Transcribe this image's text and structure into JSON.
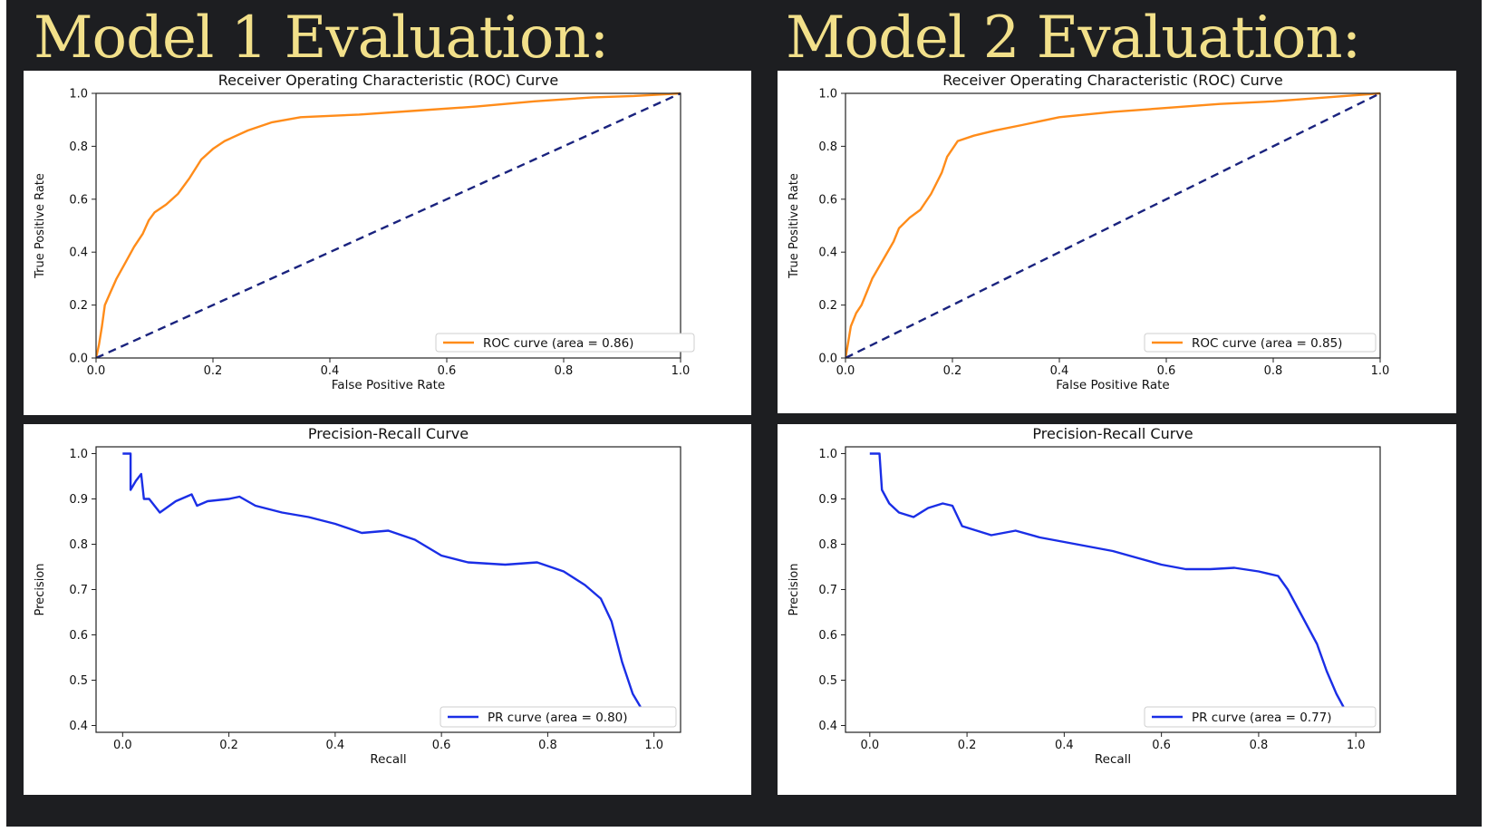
{
  "headings": [
    "Model 1 Evaluation:",
    "Model 2 Evaluation:"
  ],
  "colors": {
    "background": "#1d1e21",
    "heading": "#f2e08a",
    "roc": "#ff8c1a",
    "chance": "#1a237e",
    "pr": "#1a2ee6"
  },
  "chart_data": [
    {
      "type": "line",
      "title": "Receiver Operating Characteristic (ROC) Curve",
      "xlabel": "False Positive Rate",
      "ylabel": "True Positive Rate",
      "xlim": [
        0,
        1
      ],
      "ylim": [
        0,
        1
      ],
      "xticks": [
        "0.0",
        "0.2",
        "0.4",
        "0.6",
        "0.8",
        "1.0"
      ],
      "yticks": [
        "0.0",
        "0.2",
        "0.4",
        "0.6",
        "0.8",
        "1.0"
      ],
      "grid": false,
      "legend_position": "lower-right",
      "series": [
        {
          "name": "ROC curve (area = 0.86)",
          "color": "#ff8c1a",
          "style": "solid",
          "points": [
            [
              0,
              0
            ],
            [
              0.005,
              0.05
            ],
            [
              0.01,
              0.12
            ],
            [
              0.015,
              0.2
            ],
            [
              0.025,
              0.25
            ],
            [
              0.035,
              0.3
            ],
            [
              0.05,
              0.36
            ],
            [
              0.065,
              0.42
            ],
            [
              0.08,
              0.47
            ],
            [
              0.09,
              0.52
            ],
            [
              0.1,
              0.55
            ],
            [
              0.12,
              0.58
            ],
            [
              0.14,
              0.62
            ],
            [
              0.16,
              0.68
            ],
            [
              0.18,
              0.75
            ],
            [
              0.2,
              0.79
            ],
            [
              0.22,
              0.82
            ],
            [
              0.26,
              0.86
            ],
            [
              0.3,
              0.89
            ],
            [
              0.35,
              0.91
            ],
            [
              0.45,
              0.92
            ],
            [
              0.55,
              0.935
            ],
            [
              0.65,
              0.95
            ],
            [
              0.75,
              0.97
            ],
            [
              0.85,
              0.985
            ],
            [
              0.92,
              0.99
            ],
            [
              1,
              1
            ]
          ]
        },
        {
          "name": "",
          "color": "#1a237e",
          "style": "dashed",
          "points": [
            [
              0,
              0
            ],
            [
              1,
              1
            ]
          ]
        }
      ]
    },
    {
      "type": "line",
      "title": "Receiver Operating Characteristic (ROC) Curve",
      "xlabel": "False Positive Rate",
      "ylabel": "True Positive Rate",
      "xlim": [
        0,
        1
      ],
      "ylim": [
        0,
        1
      ],
      "xticks": [
        "0.0",
        "0.2",
        "0.4",
        "0.6",
        "0.8",
        "1.0"
      ],
      "yticks": [
        "0.0",
        "0.2",
        "0.4",
        "0.6",
        "0.8",
        "1.0"
      ],
      "grid": false,
      "legend_position": "lower-right",
      "series": [
        {
          "name": "ROC curve (area = 0.85)",
          "color": "#ff8c1a",
          "style": "solid",
          "points": [
            [
              0,
              0
            ],
            [
              0.005,
              0.06
            ],
            [
              0.01,
              0.12
            ],
            [
              0.02,
              0.17
            ],
            [
              0.03,
              0.2
            ],
            [
              0.04,
              0.25
            ],
            [
              0.05,
              0.3
            ],
            [
              0.07,
              0.37
            ],
            [
              0.09,
              0.44
            ],
            [
              0.1,
              0.49
            ],
            [
              0.12,
              0.53
            ],
            [
              0.14,
              0.56
            ],
            [
              0.16,
              0.62
            ],
            [
              0.18,
              0.7
            ],
            [
              0.19,
              0.76
            ],
            [
              0.21,
              0.82
            ],
            [
              0.24,
              0.84
            ],
            [
              0.28,
              0.86
            ],
            [
              0.33,
              0.88
            ],
            [
              0.4,
              0.91
            ],
            [
              0.5,
              0.93
            ],
            [
              0.6,
              0.945
            ],
            [
              0.7,
              0.96
            ],
            [
              0.8,
              0.97
            ],
            [
              0.9,
              0.985
            ],
            [
              1,
              1
            ]
          ]
        },
        {
          "name": "",
          "color": "#1a237e",
          "style": "dashed",
          "points": [
            [
              0,
              0
            ],
            [
              1,
              1
            ]
          ]
        }
      ]
    },
    {
      "type": "line",
      "title": "Precision-Recall Curve",
      "xlabel": "Recall",
      "ylabel": "Precision",
      "xlim": [
        -0.05,
        1.05
      ],
      "ylim": [
        0.385,
        1.015
      ],
      "xticks": [
        "0.0",
        "0.2",
        "0.4",
        "0.6",
        "0.8",
        "1.0"
      ],
      "yticks": [
        "0.4",
        "0.5",
        "0.6",
        "0.7",
        "0.8",
        "0.9",
        "1.0"
      ],
      "grid": false,
      "legend_position": "lower-right",
      "series": [
        {
          "name": "PR curve (area = 0.80)",
          "color": "#1a2ee6",
          "style": "solid",
          "points": [
            [
              0,
              1
            ],
            [
              0.015,
              1
            ],
            [
              0.015,
              0.92
            ],
            [
              0.025,
              0.94
            ],
            [
              0.035,
              0.955
            ],
            [
              0.04,
              0.9
            ],
            [
              0.05,
              0.9
            ],
            [
              0.07,
              0.87
            ],
            [
              0.1,
              0.895
            ],
            [
              0.13,
              0.91
            ],
            [
              0.14,
              0.885
            ],
            [
              0.16,
              0.895
            ],
            [
              0.2,
              0.9
            ],
            [
              0.22,
              0.905
            ],
            [
              0.25,
              0.885
            ],
            [
              0.3,
              0.87
            ],
            [
              0.35,
              0.86
            ],
            [
              0.4,
              0.845
            ],
            [
              0.45,
              0.825
            ],
            [
              0.5,
              0.83
            ],
            [
              0.55,
              0.81
            ],
            [
              0.6,
              0.775
            ],
            [
              0.65,
              0.76
            ],
            [
              0.72,
              0.755
            ],
            [
              0.78,
              0.76
            ],
            [
              0.83,
              0.74
            ],
            [
              0.87,
              0.71
            ],
            [
              0.9,
              0.68
            ],
            [
              0.92,
              0.63
            ],
            [
              0.94,
              0.54
            ],
            [
              0.96,
              0.47
            ],
            [
              0.98,
              0.43
            ]
          ]
        }
      ]
    },
    {
      "type": "line",
      "title": "Precision-Recall Curve",
      "xlabel": "Recall",
      "ylabel": "Precision",
      "xlim": [
        -0.05,
        1.05
      ],
      "ylim": [
        0.385,
        1.015
      ],
      "xticks": [
        "0.0",
        "0.2",
        "0.4",
        "0.6",
        "0.8",
        "1.0"
      ],
      "yticks": [
        "0.4",
        "0.5",
        "0.6",
        "0.7",
        "0.8",
        "0.9",
        "1.0"
      ],
      "grid": false,
      "legend_position": "lower-right",
      "series": [
        {
          "name": "PR curve (area = 0.77)",
          "color": "#1a2ee6",
          "style": "solid",
          "points": [
            [
              0,
              1
            ],
            [
              0.02,
              1
            ],
            [
              0.025,
              0.92
            ],
            [
              0.04,
              0.89
            ],
            [
              0.06,
              0.87
            ],
            [
              0.09,
              0.86
            ],
            [
              0.12,
              0.88
            ],
            [
              0.15,
              0.89
            ],
            [
              0.17,
              0.885
            ],
            [
              0.19,
              0.84
            ],
            [
              0.22,
              0.83
            ],
            [
              0.25,
              0.82
            ],
            [
              0.3,
              0.83
            ],
            [
              0.35,
              0.815
            ],
            [
              0.4,
              0.805
            ],
            [
              0.45,
              0.795
            ],
            [
              0.5,
              0.785
            ],
            [
              0.55,
              0.77
            ],
            [
              0.6,
              0.755
            ],
            [
              0.65,
              0.745
            ],
            [
              0.7,
              0.745
            ],
            [
              0.75,
              0.748
            ],
            [
              0.8,
              0.74
            ],
            [
              0.84,
              0.73
            ],
            [
              0.86,
              0.7
            ],
            [
              0.89,
              0.64
            ],
            [
              0.92,
              0.58
            ],
            [
              0.94,
              0.52
            ],
            [
              0.96,
              0.47
            ],
            [
              0.98,
              0.43
            ]
          ]
        }
      ]
    }
  ]
}
